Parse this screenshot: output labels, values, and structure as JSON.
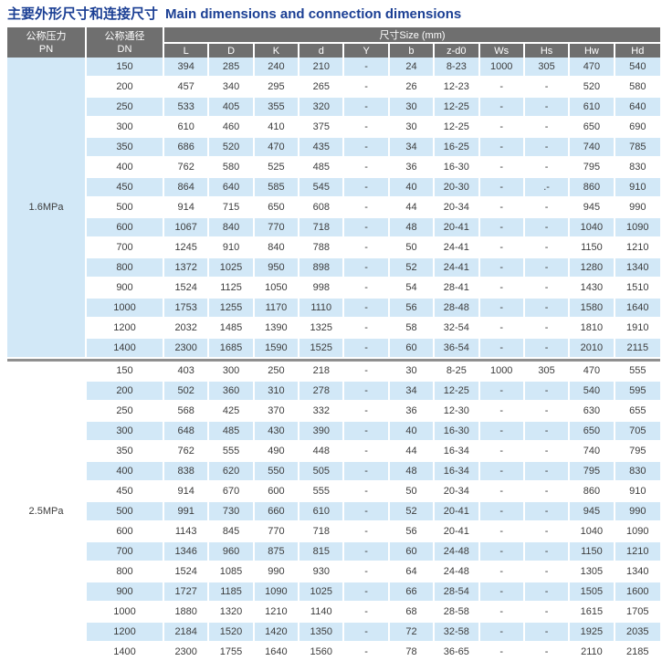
{
  "title": {
    "zh": "主要外形尺寸和连接尺寸",
    "en": "Main dimensions and connection dimensions"
  },
  "colors": {
    "title_blue": "#1b3f94",
    "header_gray": "#6f6f6f",
    "row_blue": "#d2e8f7",
    "divider_gray": "#8f8f8f",
    "text": "#3c3c3c"
  },
  "table": {
    "header": {
      "pn_zh": "公称压力",
      "pn_en": "PN",
      "dn_zh": "公称通径",
      "dn_en": "DN",
      "size_group": "尺寸Size (mm)",
      "columns": [
        "L",
        "D",
        "K",
        "d",
        "Y",
        "b",
        "z-d0",
        "Ws",
        "Hs",
        "Hw",
        "Hd"
      ]
    },
    "sections": [
      {
        "pn": "1.6MPa",
        "pn_shaded": true,
        "stripe_offset": 0,
        "rows": [
          {
            "dn": "150",
            "values": [
              "394",
              "285",
              "240",
              "210",
              "-",
              "24",
              "8-23",
              "1000",
              "305",
              "470",
              "540"
            ]
          },
          {
            "dn": "200",
            "values": [
              "457",
              "340",
              "295",
              "265",
              "-",
              "26",
              "12-23",
              "-",
              "-",
              "520",
              "580"
            ]
          },
          {
            "dn": "250",
            "values": [
              "533",
              "405",
              "355",
              "320",
              "-",
              "30",
              "12-25",
              "-",
              "-",
              "610",
              "640"
            ]
          },
          {
            "dn": "300",
            "values": [
              "610",
              "460",
              "410",
              "375",
              "-",
              "30",
              "12-25",
              "-",
              "-",
              "650",
              "690"
            ]
          },
          {
            "dn": "350",
            "values": [
              "686",
              "520",
              "470",
              "435",
              "-",
              "34",
              "16-25",
              "-",
              "-",
              "740",
              "785"
            ]
          },
          {
            "dn": "400",
            "values": [
              "762",
              "580",
              "525",
              "485",
              "-",
              "36",
              "16-30",
              "-",
              "-",
              "795",
              "830"
            ]
          },
          {
            "dn": "450",
            "values": [
              "864",
              "640",
              "585",
              "545",
              "-",
              "40",
              "20-30",
              "-",
              ".-",
              "860",
              "910"
            ]
          },
          {
            "dn": "500",
            "values": [
              "914",
              "715",
              "650",
              "608",
              "-",
              "44",
              "20-34",
              "-",
              "-",
              "945",
              "990"
            ]
          },
          {
            "dn": "600",
            "values": [
              "1067",
              "840",
              "770",
              "718",
              "-",
              "48",
              "20-41",
              "-",
              "-",
              "1040",
              "1090"
            ]
          },
          {
            "dn": "700",
            "values": [
              "1245",
              "910",
              "840",
              "788",
              "-",
              "50",
              "24-41",
              "-",
              "-",
              "1150",
              "1210"
            ]
          },
          {
            "dn": "800",
            "values": [
              "1372",
              "1025",
              "950",
              "898",
              "-",
              "52",
              "24-41",
              "-",
              "-",
              "1280",
              "1340"
            ]
          },
          {
            "dn": "900",
            "values": [
              "1524",
              "1125",
              "1050",
              "998",
              "-",
              "54",
              "28-41",
              "-",
              "-",
              "1430",
              "1510"
            ]
          },
          {
            "dn": "1000",
            "values": [
              "1753",
              "1255",
              "1170",
              "1110",
              "-",
              "56",
              "28-48",
              "-",
              "-",
              "1580",
              "1640"
            ]
          },
          {
            "dn": "1200",
            "values": [
              "2032",
              "1485",
              "1390",
              "1325",
              "-",
              "58",
              "32-54",
              "-",
              "-",
              "1810",
              "1910"
            ]
          },
          {
            "dn": "1400",
            "values": [
              "2300",
              "1685",
              "1590",
              "1525",
              "-",
              "60",
              "36-54",
              "-",
              "-",
              "2010",
              "2115"
            ]
          }
        ]
      },
      {
        "pn": "2.5MPa",
        "pn_shaded": false,
        "stripe_offset": 1,
        "rows": [
          {
            "dn": "150",
            "values": [
              "403",
              "300",
              "250",
              "218",
              "-",
              "30",
              "8-25",
              "1000",
              "305",
              "470",
              "555"
            ]
          },
          {
            "dn": "200",
            "values": [
              "502",
              "360",
              "310",
              "278",
              "-",
              "34",
              "12-25",
              "-",
              "-",
              "540",
              "595"
            ]
          },
          {
            "dn": "250",
            "values": [
              "568",
              "425",
              "370",
              "332",
              "-",
              "36",
              "12-30",
              "-",
              "-",
              "630",
              "655"
            ]
          },
          {
            "dn": "300",
            "values": [
              "648",
              "485",
              "430",
              "390",
              "-",
              "40",
              "16-30",
              "-",
              "-",
              "650",
              "705"
            ]
          },
          {
            "dn": "350",
            "values": [
              "762",
              "555",
              "490",
              "448",
              "-",
              "44",
              "16-34",
              "-",
              "-",
              "740",
              "795"
            ]
          },
          {
            "dn": "400",
            "values": [
              "838",
              "620",
              "550",
              "505",
              "-",
              "48",
              "16-34",
              "-",
              "-",
              "795",
              "830"
            ]
          },
          {
            "dn": "450",
            "values": [
              "914",
              "670",
              "600",
              "555",
              "-",
              "50",
              "20-34",
              "-",
              "-",
              "860",
              "910"
            ]
          },
          {
            "dn": "500",
            "values": [
              "991",
              "730",
              "660",
              "610",
              "-",
              "52",
              "20-41",
              "-",
              "-",
              "945",
              "990"
            ]
          },
          {
            "dn": "600",
            "values": [
              "1143",
              "845",
              "770",
              "718",
              "-",
              "56",
              "20-41",
              "-",
              "-",
              "1040",
              "1090"
            ]
          },
          {
            "dn": "700",
            "values": [
              "1346",
              "960",
              "875",
              "815",
              "-",
              "60",
              "24-48",
              "-",
              "-",
              "1150",
              "1210"
            ]
          },
          {
            "dn": "800",
            "values": [
              "1524",
              "1085",
              "990",
              "930",
              "-",
              "64",
              "24-48",
              "-",
              "-",
              "1305",
              "1340"
            ]
          },
          {
            "dn": "900",
            "values": [
              "1727",
              "1185",
              "1090",
              "1025",
              "-",
              "66",
              "28-54",
              "-",
              "-",
              "1505",
              "1600"
            ]
          },
          {
            "dn": "1000",
            "values": [
              "1880",
              "1320",
              "1210",
              "1140",
              "-",
              "68",
              "28-58",
              "-",
              "-",
              "1615",
              "1705"
            ]
          },
          {
            "dn": "1200",
            "values": [
              "2184",
              "1520",
              "1420",
              "1350",
              "-",
              "72",
              "32-58",
              "-",
              "-",
              "1925",
              "2035"
            ]
          },
          {
            "dn": "1400",
            "values": [
              "2300",
              "1755",
              "1640",
              "1560",
              "-",
              "78",
              "36-65",
              "-",
              "-",
              "2110",
              "2185"
            ]
          }
        ]
      }
    ]
  }
}
